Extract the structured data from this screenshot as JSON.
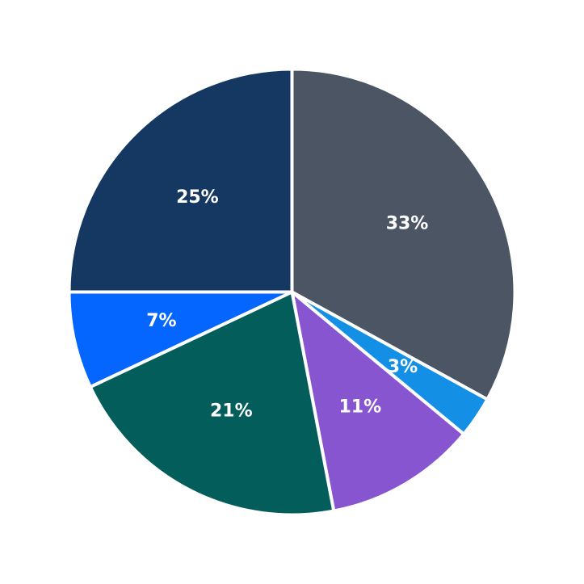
{
  "chart_data": {
    "type": "pie",
    "start_angle": "12 o'clock",
    "direction": "clockwise",
    "slices": [
      {
        "value": 33,
        "label": "33%",
        "color": "#4b5563"
      },
      {
        "value": 3,
        "label": "3%",
        "color": "#138fe6"
      },
      {
        "value": 11,
        "label": "11%",
        "color": "#8755cf"
      },
      {
        "value": 21,
        "label": "21%",
        "color": "#035e5b"
      },
      {
        "value": 7,
        "label": "7%",
        "color": "#0566ff"
      },
      {
        "value": 25,
        "label": "25%",
        "color": "#143862"
      }
    ]
  }
}
